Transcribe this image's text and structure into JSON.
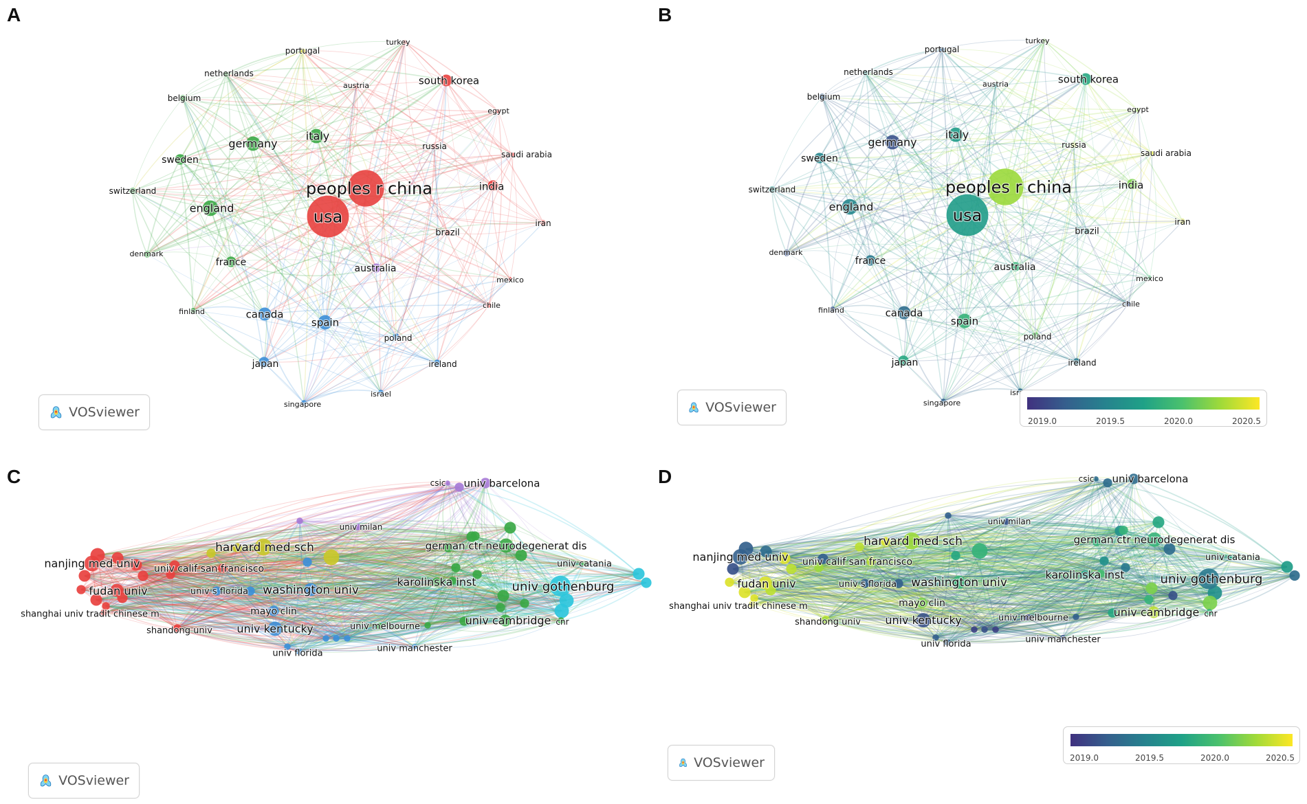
{
  "panels": [
    {
      "id": "A",
      "letter": "A",
      "kind": "country",
      "color_mode": "cluster",
      "vos_label": "VOSviewer"
    },
    {
      "id": "B",
      "letter": "B",
      "kind": "country",
      "color_mode": "overlay",
      "vos_label": "VOSviewer",
      "colorbar": [
        "2019.0",
        "2019.5",
        "2020.0",
        "2020.5"
      ]
    },
    {
      "id": "C",
      "letter": "C",
      "kind": "institution",
      "color_mode": "cluster",
      "vos_label": "VOSviewer"
    },
    {
      "id": "D",
      "letter": "D",
      "kind": "institution",
      "color_mode": "overlay",
      "vos_label": "VOSviewer",
      "colorbar": [
        "2019.0",
        "2019.5",
        "2020.0",
        "2020.5"
      ]
    }
  ],
  "colors": {
    "cluster": {
      "red": "#e8413f",
      "green": "#3aa845",
      "blue": "#3d8fd8",
      "purple": "#a679d6",
      "yellow": "#c9c72a",
      "cyan": "#2ec6dc"
    },
    "overlay_scale": [
      "#40317f",
      "#355f8d",
      "#26828e",
      "#1fa187",
      "#4ac16d",
      "#a0da39",
      "#fde725"
    ],
    "overlay_range": [
      2018.9,
      2020.6
    ]
  },
  "country_nodes": [
    {
      "label": "turkey",
      "cluster": "red",
      "size": 3,
      "year": 2020.2
    },
    {
      "label": "portugal",
      "cluster": "yellow",
      "size": 4,
      "year": 2019.2
    },
    {
      "label": "netherlands",
      "cluster": "green",
      "size": 4,
      "year": 2019.6
    },
    {
      "label": "austria",
      "cluster": "red",
      "size": 3,
      "year": 2019.6
    },
    {
      "label": "south korea",
      "cluster": "red",
      "size": 9,
      "year": 2019.8
    },
    {
      "label": "belgium",
      "cluster": "green",
      "size": 5,
      "year": 2019.2
    },
    {
      "label": "egypt",
      "cluster": "red",
      "size": 3,
      "year": 2020.3
    },
    {
      "label": "italy",
      "cluster": "green",
      "size": 11,
      "year": 2019.7
    },
    {
      "label": "germany",
      "cluster": "green",
      "size": 11,
      "year": 2019.1
    },
    {
      "label": "russia",
      "cluster": "red",
      "size": 4,
      "year": 2020.4
    },
    {
      "label": "saudi arabia",
      "cluster": "red",
      "size": 3,
      "year": 2020.5
    },
    {
      "label": "sweden",
      "cluster": "green",
      "size": 8,
      "year": 2019.5
    },
    {
      "label": "peoples r china",
      "cluster": "red",
      "size": 28,
      "year": 2020.3
    },
    {
      "label": "switzerland",
      "cluster": "green",
      "size": 5,
      "year": 2019.6
    },
    {
      "label": "india",
      "cluster": "red",
      "size": 8,
      "year": 2020.2
    },
    {
      "label": "england",
      "cluster": "green",
      "size": 12,
      "year": 2019.5
    },
    {
      "label": "usa",
      "cluster": "red",
      "size": 32,
      "year": 2019.7
    },
    {
      "label": "iran",
      "cluster": "red",
      "size": 4,
      "year": 2020.5
    },
    {
      "label": "brazil",
      "cluster": "red",
      "size": 4,
      "year": 2019.6
    },
    {
      "label": "denmark",
      "cluster": "green",
      "size": 5,
      "year": 2019.1
    },
    {
      "label": "france",
      "cluster": "green",
      "size": 8,
      "year": 2019.4
    },
    {
      "label": "australia",
      "cluster": "purple",
      "size": 7,
      "year": 2019.9
    },
    {
      "label": "mexico",
      "cluster": "red",
      "size": 3,
      "year": 2020.0
    },
    {
      "label": "chile",
      "cluster": "red",
      "size": 4,
      "year": 2019.1
    },
    {
      "label": "finland",
      "cluster": "green",
      "size": 4,
      "year": 2019.1
    },
    {
      "label": "canada",
      "cluster": "blue",
      "size": 10,
      "year": 2019.3
    },
    {
      "label": "spain",
      "cluster": "blue",
      "size": 11,
      "year": 2019.9
    },
    {
      "label": "poland",
      "cluster": "blue",
      "size": 5,
      "year": 2020.1
    },
    {
      "label": "japan",
      "cluster": "blue",
      "size": 8,
      "year": 2019.8
    },
    {
      "label": "ireland",
      "cluster": "blue",
      "size": 5,
      "year": 2019.4
    },
    {
      "label": "israel",
      "cluster": "blue",
      "size": 4,
      "year": 2019.3
    },
    {
      "label": "singapore",
      "cluster": "blue",
      "size": 4,
      "year": 2019.2
    }
  ],
  "institution_nodes": [
    {
      "label": "csic",
      "cluster": "purple",
      "size": 4,
      "year": 2019.3
    },
    {
      "label": "univ barcelona",
      "cluster": "purple",
      "size": 8,
      "year": 2019.3
    },
    {
      "label": "univ milan",
      "cluster": "purple",
      "size": 5,
      "year": 2019.1
    },
    {
      "label": "harvard med sch",
      "cluster": "yellow",
      "size": 13,
      "year": 2020.3
    },
    {
      "label": "german ctr neurodegenerat dis",
      "cluster": "green",
      "size": 11,
      "year": 2019.9
    },
    {
      "label": "nanjing med univ",
      "cluster": "red",
      "size": 12,
      "year": 2019.2
    },
    {
      "label": "univ catania",
      "cluster": "green",
      "size": 4,
      "year": 2019.8
    },
    {
      "label": "univ calif san francisco",
      "cluster": "red",
      "size": 7,
      "year": 2020.4
    },
    {
      "label": "karolinska inst",
      "cluster": "green",
      "size": 7,
      "year": 2019.7
    },
    {
      "label": "fudan univ",
      "cluster": "red",
      "size": 10,
      "year": 2020.5
    },
    {
      "label": "univ s florida",
      "cluster": "blue",
      "size": 7,
      "year": 2019.2
    },
    {
      "label": "washington univ",
      "cluster": "blue",
      "size": 10,
      "year": 2019.9
    },
    {
      "label": "univ gothenburg",
      "cluster": "cyan",
      "size": 16,
      "year": 2019.4
    },
    {
      "label": "shanghai univ tradit chinese m",
      "cluster": "red",
      "size": 5,
      "year": 2020.5
    },
    {
      "label": "mayo clin",
      "cluster": "blue",
      "size": 8,
      "year": 2020.2
    },
    {
      "label": "univ cambridge",
      "cluster": "green",
      "size": 9,
      "year": 2020.4
    },
    {
      "label": "cnr",
      "cluster": "green",
      "size": 5,
      "year": 2019.9
    },
    {
      "label": "shandong univ",
      "cluster": "red",
      "size": 5,
      "year": 2020.3
    },
    {
      "label": "univ kentucky",
      "cluster": "blue",
      "size": 11,
      "year": 2019.1
    },
    {
      "label": "univ melbourne",
      "cluster": "green",
      "size": 5,
      "year": 2019.0
    },
    {
      "label": "univ manchester",
      "cluster": "blue",
      "size": 4,
      "year": 2019.1
    },
    {
      "label": "univ florida",
      "cluster": "blue",
      "size": 5,
      "year": 2019.2
    }
  ]
}
